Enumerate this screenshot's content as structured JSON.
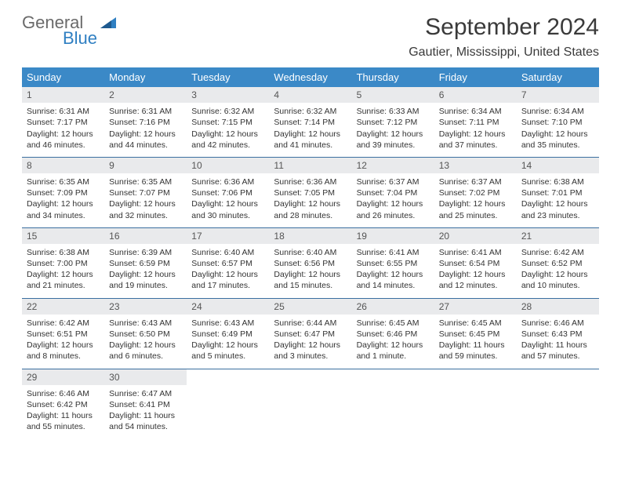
{
  "brand": {
    "name1": "General",
    "name2": "Blue"
  },
  "title": "September 2024",
  "location": "Gautier, Mississippi, United States",
  "colors": {
    "header_bg": "#3b89c7",
    "header_text": "#ffffff",
    "daynum_bg": "#e9eaec",
    "border": "#3b6fa0",
    "text": "#333333",
    "brand_gray": "#6a6a6a",
    "brand_blue": "#2f7fc2"
  },
  "day_headers": [
    "Sunday",
    "Monday",
    "Tuesday",
    "Wednesday",
    "Thursday",
    "Friday",
    "Saturday"
  ],
  "weeks": [
    [
      {
        "n": "1",
        "sr": "6:31 AM",
        "ss": "7:17 PM",
        "d1": "12 hours",
        "d2": "and 46 minutes."
      },
      {
        "n": "2",
        "sr": "6:31 AM",
        "ss": "7:16 PM",
        "d1": "12 hours",
        "d2": "and 44 minutes."
      },
      {
        "n": "3",
        "sr": "6:32 AM",
        "ss": "7:15 PM",
        "d1": "12 hours",
        "d2": "and 42 minutes."
      },
      {
        "n": "4",
        "sr": "6:32 AM",
        "ss": "7:14 PM",
        "d1": "12 hours",
        "d2": "and 41 minutes."
      },
      {
        "n": "5",
        "sr": "6:33 AM",
        "ss": "7:12 PM",
        "d1": "12 hours",
        "d2": "and 39 minutes."
      },
      {
        "n": "6",
        "sr": "6:34 AM",
        "ss": "7:11 PM",
        "d1": "12 hours",
        "d2": "and 37 minutes."
      },
      {
        "n": "7",
        "sr": "6:34 AM",
        "ss": "7:10 PM",
        "d1": "12 hours",
        "d2": "and 35 minutes."
      }
    ],
    [
      {
        "n": "8",
        "sr": "6:35 AM",
        "ss": "7:09 PM",
        "d1": "12 hours",
        "d2": "and 34 minutes."
      },
      {
        "n": "9",
        "sr": "6:35 AM",
        "ss": "7:07 PM",
        "d1": "12 hours",
        "d2": "and 32 minutes."
      },
      {
        "n": "10",
        "sr": "6:36 AM",
        "ss": "7:06 PM",
        "d1": "12 hours",
        "d2": "and 30 minutes."
      },
      {
        "n": "11",
        "sr": "6:36 AM",
        "ss": "7:05 PM",
        "d1": "12 hours",
        "d2": "and 28 minutes."
      },
      {
        "n": "12",
        "sr": "6:37 AM",
        "ss": "7:04 PM",
        "d1": "12 hours",
        "d2": "and 26 minutes."
      },
      {
        "n": "13",
        "sr": "6:37 AM",
        "ss": "7:02 PM",
        "d1": "12 hours",
        "d2": "and 25 minutes."
      },
      {
        "n": "14",
        "sr": "6:38 AM",
        "ss": "7:01 PM",
        "d1": "12 hours",
        "d2": "and 23 minutes."
      }
    ],
    [
      {
        "n": "15",
        "sr": "6:38 AM",
        "ss": "7:00 PM",
        "d1": "12 hours",
        "d2": "and 21 minutes."
      },
      {
        "n": "16",
        "sr": "6:39 AM",
        "ss": "6:59 PM",
        "d1": "12 hours",
        "d2": "and 19 minutes."
      },
      {
        "n": "17",
        "sr": "6:40 AM",
        "ss": "6:57 PM",
        "d1": "12 hours",
        "d2": "and 17 minutes."
      },
      {
        "n": "18",
        "sr": "6:40 AM",
        "ss": "6:56 PM",
        "d1": "12 hours",
        "d2": "and 15 minutes."
      },
      {
        "n": "19",
        "sr": "6:41 AM",
        "ss": "6:55 PM",
        "d1": "12 hours",
        "d2": "and 14 minutes."
      },
      {
        "n": "20",
        "sr": "6:41 AM",
        "ss": "6:54 PM",
        "d1": "12 hours",
        "d2": "and 12 minutes."
      },
      {
        "n": "21",
        "sr": "6:42 AM",
        "ss": "6:52 PM",
        "d1": "12 hours",
        "d2": "and 10 minutes."
      }
    ],
    [
      {
        "n": "22",
        "sr": "6:42 AM",
        "ss": "6:51 PM",
        "d1": "12 hours",
        "d2": "and 8 minutes."
      },
      {
        "n": "23",
        "sr": "6:43 AM",
        "ss": "6:50 PM",
        "d1": "12 hours",
        "d2": "and 6 minutes."
      },
      {
        "n": "24",
        "sr": "6:43 AM",
        "ss": "6:49 PM",
        "d1": "12 hours",
        "d2": "and 5 minutes."
      },
      {
        "n": "25",
        "sr": "6:44 AM",
        "ss": "6:47 PM",
        "d1": "12 hours",
        "d2": "and 3 minutes."
      },
      {
        "n": "26",
        "sr": "6:45 AM",
        "ss": "6:46 PM",
        "d1": "12 hours",
        "d2": "and 1 minute."
      },
      {
        "n": "27",
        "sr": "6:45 AM",
        "ss": "6:45 PM",
        "d1": "11 hours",
        "d2": "and 59 minutes."
      },
      {
        "n": "28",
        "sr": "6:46 AM",
        "ss": "6:43 PM",
        "d1": "11 hours",
        "d2": "and 57 minutes."
      }
    ],
    [
      {
        "n": "29",
        "sr": "6:46 AM",
        "ss": "6:42 PM",
        "d1": "11 hours",
        "d2": "and 55 minutes."
      },
      {
        "n": "30",
        "sr": "6:47 AM",
        "ss": "6:41 PM",
        "d1": "11 hours",
        "d2": "and 54 minutes."
      },
      null,
      null,
      null,
      null,
      null
    ]
  ],
  "labels": {
    "sunrise": "Sunrise:",
    "sunset": "Sunset:",
    "daylight": "Daylight:"
  }
}
